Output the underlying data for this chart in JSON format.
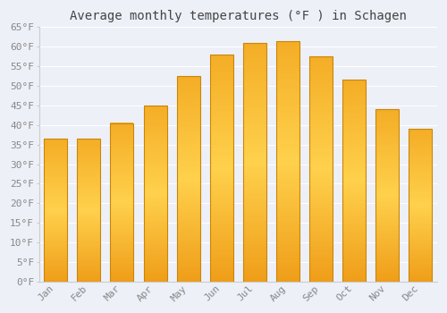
{
  "title": "Average monthly temperatures (°F ) in Schagen",
  "months": [
    "Jan",
    "Feb",
    "Mar",
    "Apr",
    "May",
    "Jun",
    "Jul",
    "Aug",
    "Sep",
    "Oct",
    "Nov",
    "Dec"
  ],
  "values": [
    36.5,
    36.5,
    40.5,
    45.0,
    52.5,
    58.0,
    61.0,
    61.5,
    57.5,
    51.5,
    44.0,
    39.0
  ],
  "bar_color_top": "#F5A623",
  "bar_color_mid": "#FFD060",
  "bar_color_bot": "#F0A020",
  "bar_edge_color": "#C8860A",
  "background_color": "#EEF0F8",
  "plot_bg_color": "#EEF0F8",
  "grid_color": "#FFFFFF",
  "title_color": "#444444",
  "tick_color": "#888888",
  "spine_color": "#CCCCCC",
  "ylim": [
    0,
    65
  ],
  "ytick_step": 5,
  "title_fontsize": 10,
  "tick_fontsize": 8
}
